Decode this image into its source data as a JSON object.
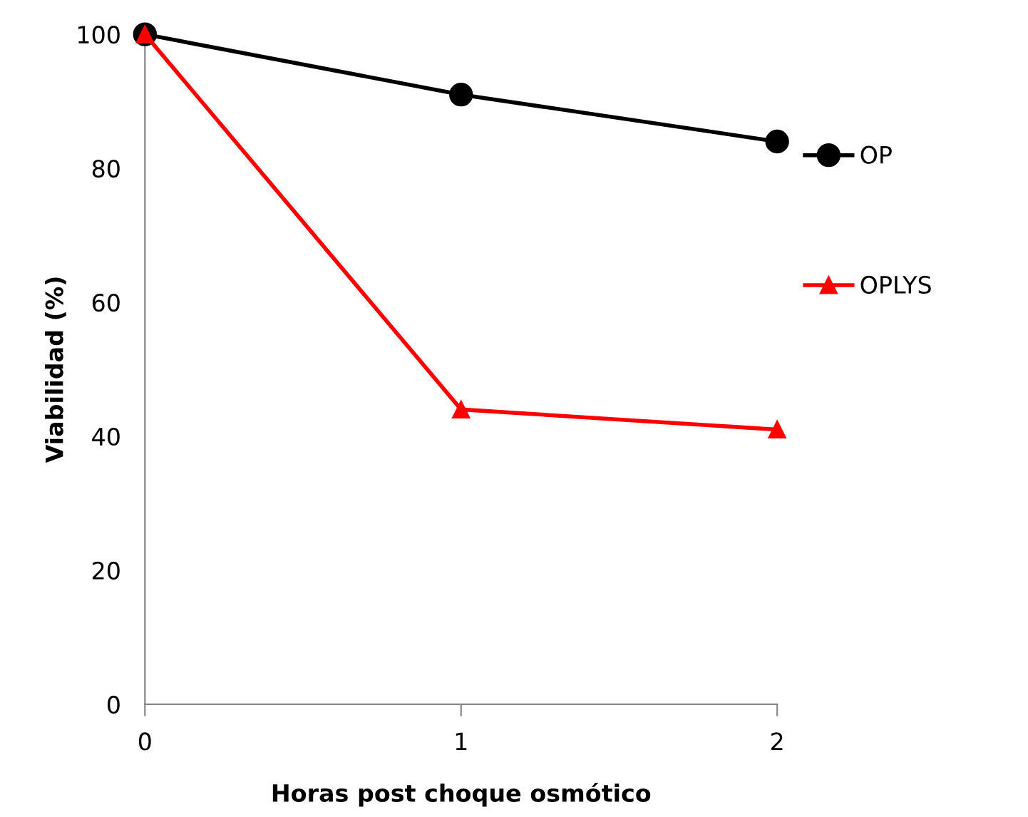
{
  "chart_data": {
    "type": "line",
    "xlabel": "Horas post choque osmótico",
    "ylabel": "Viabilidad (%)",
    "x": [
      0,
      1,
      2
    ],
    "xlim": [
      0,
      2
    ],
    "xticks": [
      0,
      1,
      2
    ],
    "ylim": [
      0,
      100
    ],
    "yticks": [
      0,
      20,
      40,
      60,
      80,
      100
    ],
    "series": [
      {
        "name": "OP",
        "color": "#000000",
        "marker": "circle",
        "values": [
          100,
          91,
          84
        ]
      },
      {
        "name": "OPLYS",
        "color": "#ff0000",
        "marker": "triangle",
        "values": [
          100,
          44,
          41
        ]
      }
    ],
    "legend": "right",
    "grid": false,
    "line_style": "solid"
  }
}
